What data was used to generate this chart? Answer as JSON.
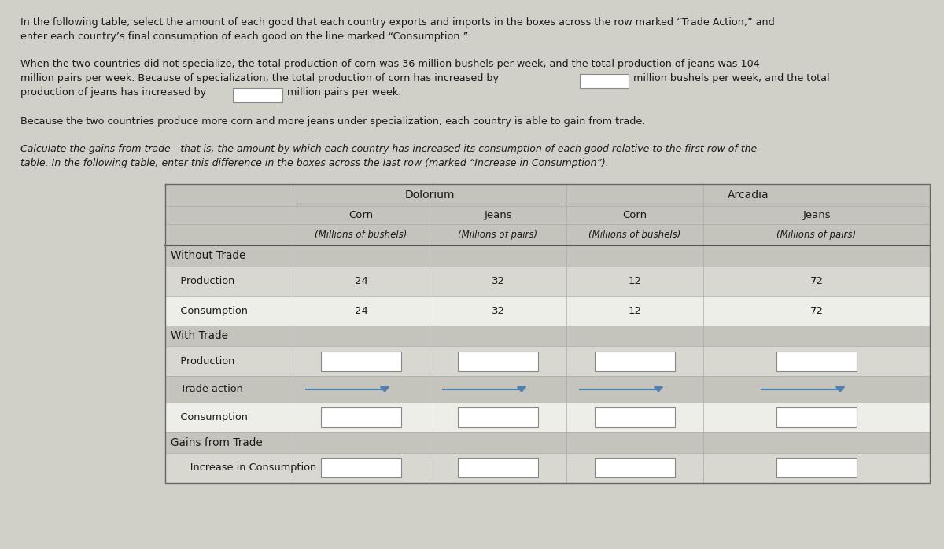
{
  "bg_color": "#d0cfc8",
  "text_color": "#1a1a1a",
  "country1": "Dolorium",
  "country2": "Arcadia",
  "col_headers": [
    "Corn",
    "Jeans",
    "Corn",
    "Jeans"
  ],
  "col_subheaders": [
    "(Millions of bushels)",
    "(Millions of pairs)",
    "(Millions of bushels)",
    "(Millions of pairs)"
  ],
  "section_color": "#c5c4bc",
  "light_color": "#d8d8d0",
  "white_color": "#eeeee8",
  "input_box_color": "#ffffff",
  "input_box_border": "#888888",
  "dropdown_arrow_color": "#4a7fb5",
  "dropdown_line_color": "#4a7fb5",
  "Production_notrade": [
    "24",
    "32",
    "12",
    "72"
  ],
  "Consumption_notrade": [
    "24",
    "32",
    "12",
    "72"
  ],
  "p1_line1": "In the following table, select the amount of each good that each country exports and imports in the boxes across the row marked “Trade Action,” and",
  "p1_line2": "enter each country’s final consumption of each good on the line marked “Consumption.”",
  "p2_line1": "When the two countries did not specialize, the total production of corn was 36 million bushels per week, and the total production of jeans was 104",
  "p2_line2": "million pairs per week. Because of specialization, the total production of corn has increased by",
  "p2_line2b": "million bushels per week, and the total",
  "p2_line3": "production of jeans has increased by",
  "p2_line3b": "million pairs per week.",
  "p3": "Because the two countries produce more corn and more jeans under specialization, each country is able to gain from trade.",
  "p4_line1": "Calculate the gains from trade—that is, the amount by which each country has increased its consumption of each good relative to the first row of the",
  "p4_line2": "table. In the following table, enter this difference in the boxes across the last row (marked “Increase in Consumption”).",
  "row_label_3": "Without Trade",
  "row_label_4": "   Production",
  "row_label_5": "   Consumption",
  "row_label_6": "With Trade",
  "row_label_7": "   Production",
  "row_label_8": "   Trade action",
  "row_label_9": "   Consumption",
  "row_label_10": "Gains from Trade",
  "row_label_11": "      Increase in Consumption"
}
